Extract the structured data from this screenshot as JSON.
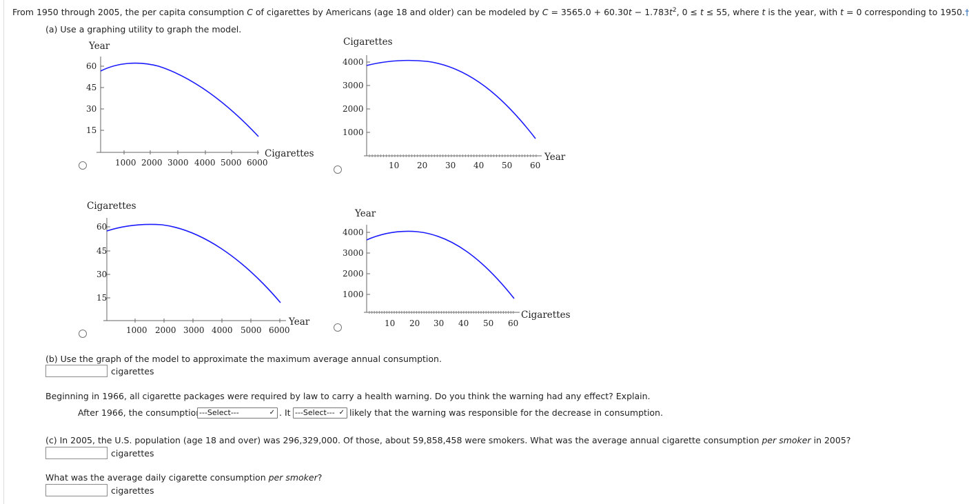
{
  "question": {
    "intro_prefix": "From 1950 through 2005, the per capita consumption ",
    "var_C": "C",
    "intro_mid": " of cigarettes by Americans (age 18 and older) can be modeled by ",
    "model_lhs": "C",
    "model_rhs": " = 3565.0 + 60.30",
    "var_t1": "t",
    "model_minus": " − 1.783",
    "var_t2": "t",
    "exp2": "2",
    "domain_sep": ",   0 ≤ ",
    "var_t3": "t",
    "domain_end": " ≤ 55, where ",
    "var_t4": "t",
    "intro_year": " is the year, with ",
    "var_t5": "t",
    "intro_end": " = 0 corresponding to 1950.",
    "dagger": "†"
  },
  "part_a": {
    "label": "(a) Use a graphing utility to graph the model."
  },
  "graphs": [
    {
      "title": "Year",
      "xlabel": "Cigarettes",
      "ticks_y": [
        "60",
        "45",
        "30",
        "15"
      ],
      "ticks_x": [
        "1000",
        "2000",
        "3000",
        "4000",
        "5000",
        "6000"
      ]
    },
    {
      "title": "Cigarettes",
      "xlabel": "Year",
      "ticks_y": [
        "4000",
        "3000",
        "2000",
        "1000"
      ],
      "ticks_x": [
        "10",
        "20",
        "30",
        "40",
        "50",
        "60"
      ]
    },
    {
      "title": "Cigarettes",
      "xlabel": "Year",
      "ticks_y": [
        "60",
        "45",
        "30",
        "15"
      ],
      "ticks_x": [
        "1000",
        "2000",
        "3000",
        "4000",
        "5000",
        "6000"
      ]
    },
    {
      "title": "Year",
      "xlabel": "Cigarettes",
      "ticks_y": [
        "4000",
        "3000",
        "2000",
        "1000"
      ],
      "ticks_x": [
        "10",
        "20",
        "30",
        "40",
        "50",
        "60"
      ]
    }
  ],
  "curve_color": "#1a1aff",
  "part_b": {
    "label": "(b) Use the graph of the model to approximate the maximum average annual consumption.",
    "unit": "cigarettes",
    "warning_text": "Beginning in 1966, all cigarette packages were required by law to carry a health warning. Do you think the warning had any effect? Explain.",
    "after_prefix": "After 1966, the consumption",
    "select1_value": "---Select---",
    "it_text": ". It",
    "select2_value": "---Select---",
    "after_suffix": "likely that the warning was responsible for the decrease in consumption."
  },
  "part_c": {
    "label_prefix": "(c) In 2005, the U.S. population (age 18 and over) was 296,329,000. Of those, about 59,858,458 were smokers. What was the average annual cigarette consumption ",
    "label_em": "per smoker",
    "label_suffix": " in 2005?",
    "unit": "cigarettes",
    "daily_prefix": "What was the average daily cigarette consumption ",
    "daily_em": "per smoker",
    "daily_suffix": "?",
    "daily_unit": "cigarettes"
  }
}
